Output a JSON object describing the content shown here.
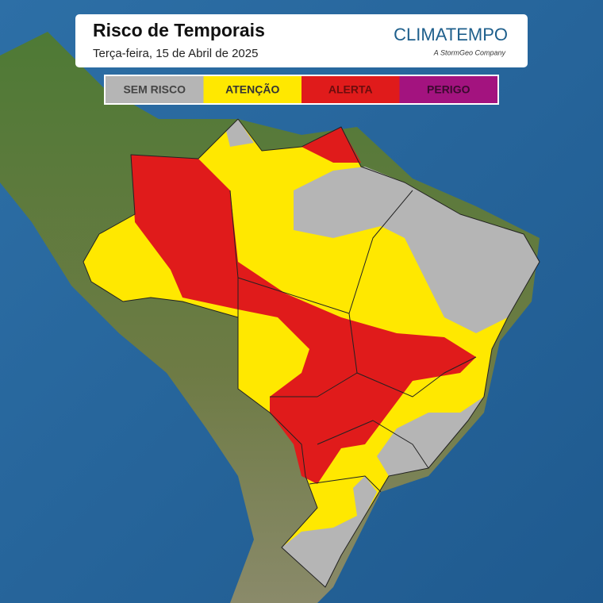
{
  "header": {
    "title": "Risco de Temporais",
    "subtitle": "Terça-feira, 15 de Abril de 2025",
    "brand": "CLIMATEMPO",
    "brand_tagline": "A StormGeo Company"
  },
  "legend": {
    "items": [
      {
        "label": "SEM RISCO",
        "color": "#b5b5b5"
      },
      {
        "label": "ATENÇÃO",
        "color": "#ffe800"
      },
      {
        "label": "ALERTA",
        "color": "#e01b1b"
      },
      {
        "label": "PERIGO",
        "color": "#a3137f"
      }
    ]
  }
}
